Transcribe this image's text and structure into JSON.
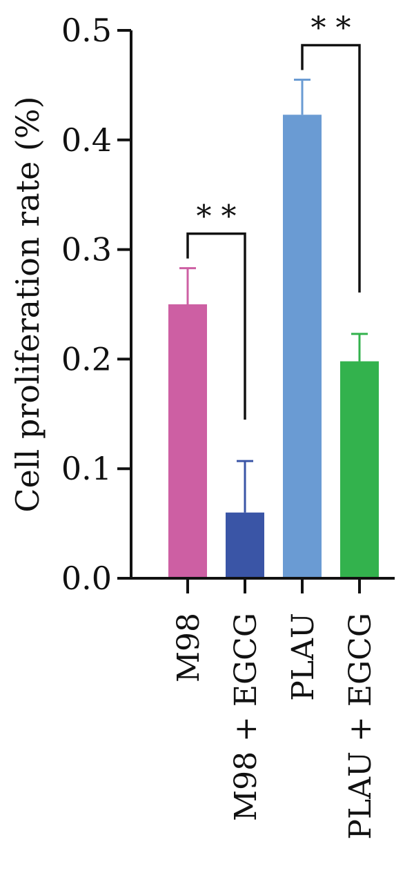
{
  "chart_data": {
    "type": "bar",
    "title": "",
    "ylabel": "Cell proliferation rate (%)",
    "xlabel": "",
    "ylim": [
      0,
      0.5
    ],
    "yticks": [
      {
        "value": 0.0,
        "label": "0.0"
      },
      {
        "value": 0.1,
        "label": "0.1"
      },
      {
        "value": 0.2,
        "label": "0.2"
      },
      {
        "value": 0.3,
        "label": "0.3"
      },
      {
        "value": 0.4,
        "label": "0.4"
      },
      {
        "value": 0.5,
        "label": "0.5"
      }
    ],
    "categories": [
      "M98",
      "M98 + EGCG",
      "PLAU",
      "PLAU + EGCG"
    ],
    "values": [
      0.25,
      0.06,
      0.423,
      0.198
    ],
    "errors": [
      0.033,
      0.047,
      0.032,
      0.025
    ],
    "colors": [
      "#cd5fa3",
      "#3a55a6",
      "#6a9bd3",
      "#33b24d"
    ],
    "significance": [
      {
        "from": 0,
        "to": 1,
        "label": "* *"
      },
      {
        "from": 2,
        "to": 3,
        "label": "* *"
      }
    ]
  }
}
